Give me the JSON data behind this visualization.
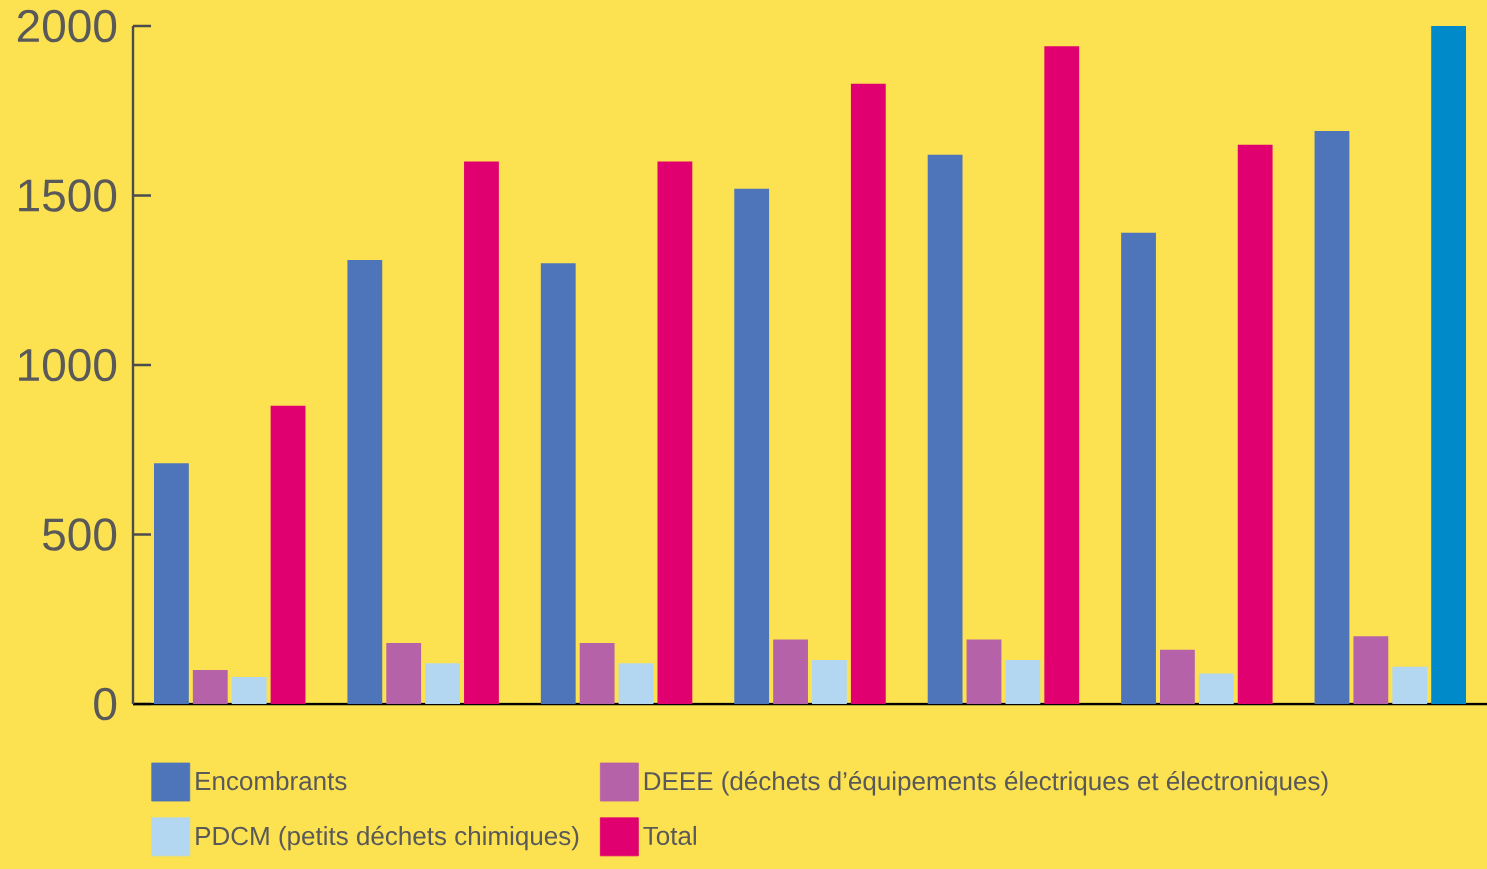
{
  "chart_data": {
    "type": "bar",
    "categories": [
      null,
      null,
      null,
      null,
      null,
      null,
      null
    ],
    "ylim": [
      0,
      2000
    ],
    "yticks": [
      0,
      500,
      1000,
      1500,
      2000
    ],
    "legend": "bottom",
    "series": [
      {
        "name": "Encombrants",
        "color": "#4e74b9",
        "values": [
          710,
          1310,
          1300,
          1520,
          1620,
          1390,
          1690
        ]
      },
      {
        "name": "DEEE (déchets d’équipements électriques et électroniques)",
        "color": "#b562a8",
        "values": [
          100,
          180,
          180,
          190,
          190,
          160,
          200
        ]
      },
      {
        "name": "PDCM (petits déchets chimiques)",
        "color": "#b3d7f0",
        "values": [
          80,
          120,
          120,
          130,
          130,
          90,
          110
        ]
      },
      {
        "name": "Total",
        "color": "#e0006f",
        "colors": [
          "#e0006f",
          "#e0006f",
          "#e0006f",
          "#e0006f",
          "#e0006f",
          "#e0006f",
          "#008ac9"
        ],
        "values": [
          880,
          1600,
          1600,
          1830,
          1940,
          1650,
          2000
        ]
      }
    ]
  }
}
